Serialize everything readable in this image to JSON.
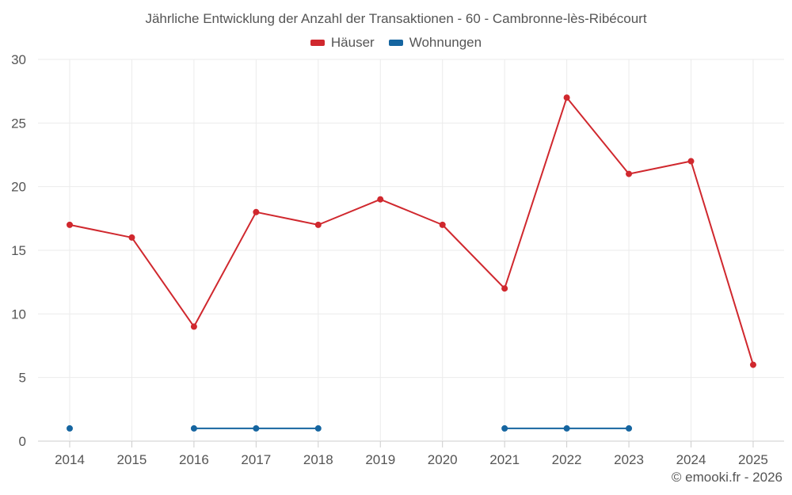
{
  "chart_data": {
    "type": "line",
    "title": "Jährliche Entwicklung der Anzahl der Transaktionen - 60 - Cambronne-lès-Ribécourt",
    "xlabel": "",
    "ylabel": "",
    "categories": [
      "2014",
      "2015",
      "2016",
      "2017",
      "2018",
      "2019",
      "2020",
      "2021",
      "2022",
      "2023",
      "2024",
      "2025"
    ],
    "ylim": [
      0,
      30
    ],
    "yticks": [
      0,
      5,
      10,
      15,
      20,
      25,
      30
    ],
    "grid": true,
    "legend_position": "top-center",
    "series": [
      {
        "name": "Häuser",
        "color": "#d0282e",
        "values": [
          17,
          16,
          9,
          18,
          17,
          19,
          17,
          12,
          27,
          21,
          22,
          6
        ]
      },
      {
        "name": "Wohnungen",
        "color": "#1565a0",
        "values": [
          1,
          null,
          1,
          1,
          1,
          null,
          null,
          1,
          1,
          1,
          null,
          null
        ]
      }
    ]
  },
  "credit": "© emooki.fr - 2026"
}
